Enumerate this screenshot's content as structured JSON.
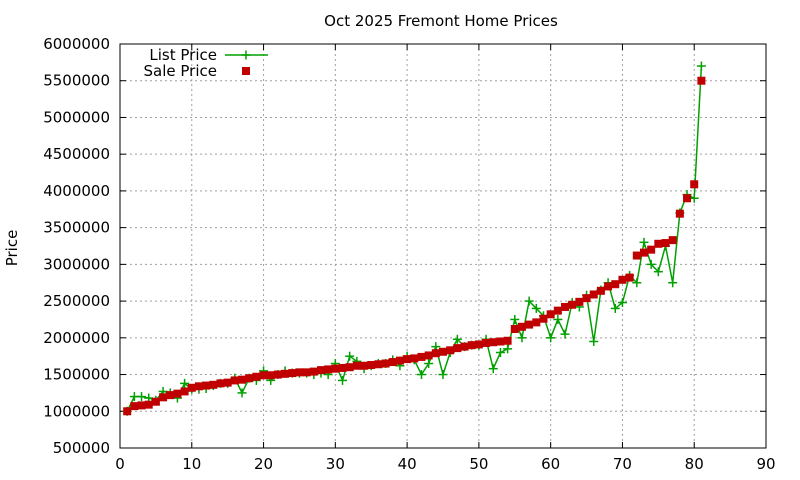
{
  "chart_data": {
    "type": "line",
    "title": "Oct 2025 Fremont Home Prices",
    "xlabel": "",
    "ylabel": "Price",
    "xlim": [
      0,
      90
    ],
    "ylim": [
      500000,
      6000000
    ],
    "grid": true,
    "legend_position": "top-left",
    "x_ticks": [
      "0",
      "10",
      "20",
      "30",
      "40",
      "50",
      "60",
      "70",
      "80",
      "90"
    ],
    "y_ticks": [
      "500000",
      "1000000",
      "1500000",
      "2000000",
      "2500000",
      "3000000",
      "3500000",
      "4000000",
      "4500000",
      "5000000",
      "5500000",
      "6000000"
    ],
    "series": [
      {
        "name": "List Price",
        "style": "line+plus",
        "color": "#00a000",
        "x": [
          1,
          2,
          3,
          4,
          5,
          6,
          7,
          8,
          9,
          10,
          11,
          12,
          13,
          14,
          15,
          16,
          17,
          18,
          19,
          20,
          21,
          22,
          23,
          24,
          25,
          26,
          27,
          28,
          29,
          30,
          31,
          32,
          33,
          34,
          35,
          36,
          37,
          38,
          39,
          40,
          41,
          42,
          43,
          44,
          45,
          46,
          47,
          48,
          49,
          50,
          51,
          52,
          53,
          54,
          55,
          56,
          57,
          58,
          59,
          60,
          61,
          62,
          63,
          64,
          65,
          66,
          67,
          68,
          69,
          70,
          71,
          72,
          73,
          74,
          75,
          76,
          77,
          78,
          79,
          80,
          81
        ],
        "values": [
          1000000,
          1200000,
          1200000,
          1180000,
          1150000,
          1270000,
          1250000,
          1180000,
          1380000,
          1300000,
          1300000,
          1310000,
          1350000,
          1380000,
          1380000,
          1450000,
          1250000,
          1450000,
          1420000,
          1550000,
          1420000,
          1500000,
          1550000,
          1520000,
          1520000,
          1520000,
          1500000,
          1520000,
          1500000,
          1650000,
          1420000,
          1750000,
          1680000,
          1580000,
          1620000,
          1650000,
          1650000,
          1700000,
          1620000,
          1750000,
          1700000,
          1500000,
          1650000,
          1880000,
          1500000,
          1800000,
          1980000,
          1880000,
          1900000,
          1900000,
          1980000,
          1580000,
          1800000,
          1850000,
          2250000,
          2000000,
          2500000,
          2400000,
          2300000,
          2000000,
          2250000,
          2050000,
          2480000,
          2420000,
          2580000,
          1950000,
          2650000,
          2750000,
          2400000,
          2480000,
          2850000,
          2750000,
          3300000,
          3000000,
          2900000,
          3250000,
          2750000,
          3700000,
          3950000,
          3900000,
          5700000
        ]
      },
      {
        "name": "Sale Price",
        "style": "square-marker",
        "color": "#c00000",
        "x": [
          1,
          2,
          3,
          4,
          5,
          6,
          7,
          8,
          9,
          10,
          11,
          12,
          13,
          14,
          15,
          16,
          17,
          18,
          19,
          20,
          21,
          22,
          23,
          24,
          25,
          26,
          27,
          28,
          29,
          30,
          31,
          32,
          33,
          34,
          35,
          36,
          37,
          38,
          39,
          40,
          41,
          42,
          43,
          44,
          45,
          46,
          47,
          48,
          49,
          50,
          51,
          52,
          53,
          54,
          55,
          56,
          57,
          58,
          59,
          60,
          61,
          62,
          63,
          64,
          65,
          66,
          67,
          68,
          69,
          70,
          71,
          72,
          73,
          74,
          75,
          76,
          77,
          78,
          79,
          80,
          81
        ],
        "values": [
          1000000,
          1070000,
          1080000,
          1090000,
          1130000,
          1190000,
          1220000,
          1240000,
          1270000,
          1320000,
          1340000,
          1350000,
          1360000,
          1380000,
          1390000,
          1420000,
          1430000,
          1450000,
          1470000,
          1490000,
          1490000,
          1500000,
          1510000,
          1520000,
          1530000,
          1530000,
          1540000,
          1560000,
          1570000,
          1580000,
          1590000,
          1600000,
          1620000,
          1620000,
          1630000,
          1640000,
          1650000,
          1670000,
          1690000,
          1710000,
          1720000,
          1740000,
          1760000,
          1790000,
          1810000,
          1830000,
          1860000,
          1880000,
          1900000,
          1910000,
          1930000,
          1940000,
          1950000,
          1960000,
          2120000,
          2150000,
          2180000,
          2210000,
          2260000,
          2320000,
          2370000,
          2420000,
          2450000,
          2490000,
          2540000,
          2590000,
          2640000,
          2700000,
          2730000,
          2790000,
          2820000,
          3120000,
          3160000,
          3200000,
          3280000,
          3290000,
          3330000,
          3690000,
          3900000,
          4090000,
          5500000
        ]
      }
    ]
  }
}
